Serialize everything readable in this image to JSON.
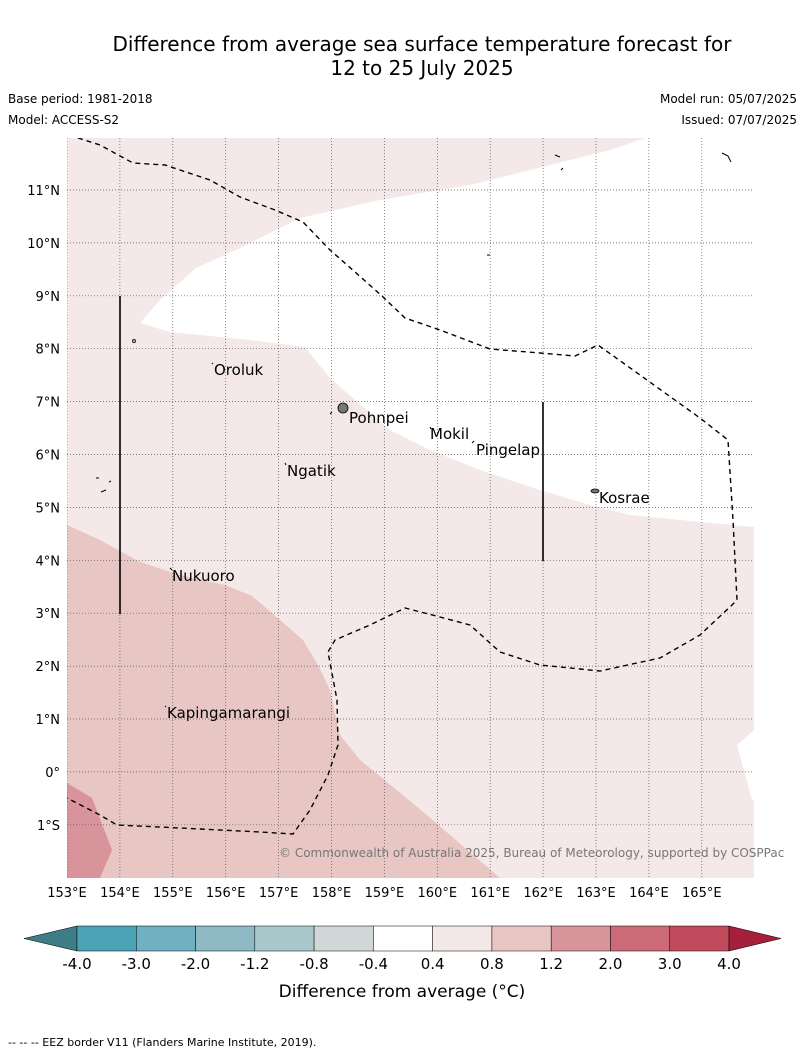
{
  "header": {
    "title_line1": "Difference from average sea surface temperature forecast for",
    "title_line2": "12 to 25 July 2025",
    "base_period": "Base period: 1981-2018",
    "model": "Model: ACCESS-S2",
    "model_run": "Model run: 05/07/2025",
    "issued": "Issued: 07/07/2025"
  },
  "map": {
    "lat_labels": [
      "11°N",
      "10°N",
      "9°N",
      "8°N",
      "7°N",
      "6°N",
      "5°N",
      "4°N",
      "3°N",
      "2°N",
      "1°N",
      "0°",
      "1°S"
    ],
    "lon_labels": [
      "153°E",
      "154°E",
      "155°E",
      "156°E",
      "157°E",
      "158°E",
      "159°E",
      "160°E",
      "161°E",
      "162°E",
      "163°E",
      "164°E",
      "165°E"
    ],
    "places": [
      "Oroluk",
      "Pohnpei",
      "Mokil",
      "Pingelap",
      "Ngatik",
      "Kosrae",
      "Nukuoro",
      "Kapingamarangi"
    ],
    "copyright": "© Commonwealth of Australia 2025, Bureau of Meteorology, supported by COSPPac",
    "colors": {
      "band_0_4_0_8": "#f4e8e8",
      "band_0_8_1_2": "#e8c6c3",
      "band_1_2_2_0": "#d9939a",
      "eez_line": "#000000"
    }
  },
  "colorbar": {
    "ticks": [
      "-4.0",
      "-3.0",
      "-2.0",
      "-1.2",
      "-0.8",
      "-0.4",
      "0.4",
      "0.8",
      "1.2",
      "2.0",
      "3.0",
      "4.0"
    ],
    "colors": [
      "#3d7d86",
      "#4aa4b5",
      "#6fb1c2",
      "#8fbac5",
      "#a9c6ca",
      "#d0d7d7",
      "#ffffff",
      "#f4e8e8",
      "#e8c6c3",
      "#d9939a",
      "#cc6b77",
      "#be4a5c",
      "#a6203c"
    ],
    "label": "Difference from average (°C)"
  },
  "footer": {
    "eez_note": "--  --  -- EEZ border V11 (Flanders Marine Institute, 2019)."
  }
}
